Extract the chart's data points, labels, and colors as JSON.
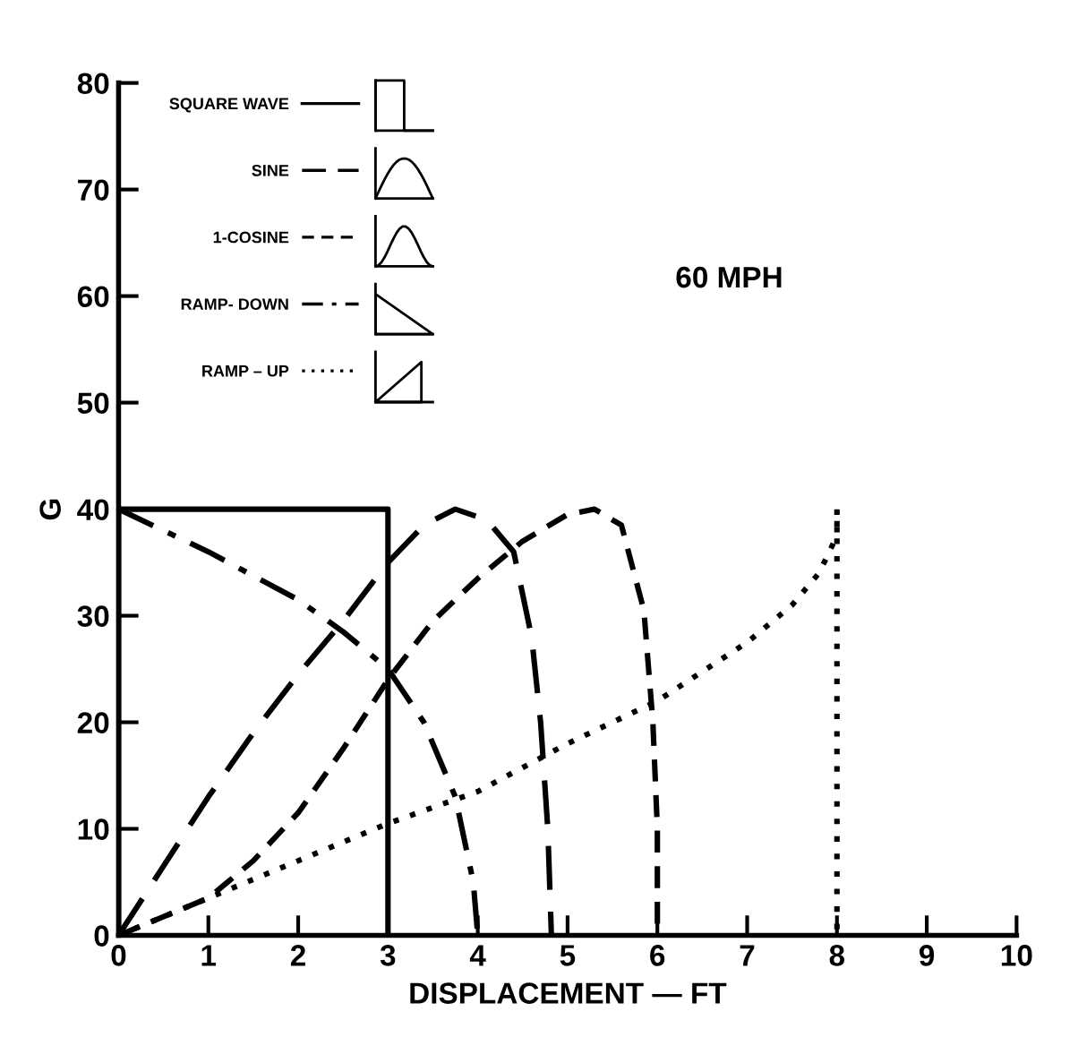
{
  "chart_data": {
    "type": "line",
    "xlabel": "DISPLACEMENT — FT",
    "ylabel": "G",
    "annotations": [
      "60 MPH"
    ],
    "xlim": [
      0,
      10
    ],
    "xticks": [
      0,
      1,
      2,
      3,
      4,
      5,
      6,
      7,
      8,
      9,
      10
    ],
    "ylim": [
      0,
      80
    ],
    "yticks": [
      0,
      10,
      20,
      30,
      40,
      50,
      60,
      70,
      80
    ],
    "grid": false,
    "legend": "top left",
    "marker": "none",
    "series": [
      {
        "name": "SQUARE WAVE",
        "color": "#000000",
        "line_style": "solid",
        "x": [
          0,
          0,
          3,
          3
        ],
        "values": [
          0,
          40,
          40,
          0
        ]
      },
      {
        "name": "SINE",
        "color": "#000000",
        "line_style": "long dashed",
        "x": [
          0,
          0.5,
          1,
          1.5,
          2,
          2.5,
          3,
          3.4,
          3.75,
          4.1,
          4.4,
          4.6,
          4.7,
          4.78,
          4.82
        ],
        "values": [
          0,
          6.5,
          13,
          19,
          24.5,
          29.5,
          35,
          38.5,
          40,
          39,
          36,
          28,
          20,
          10,
          0
        ]
      },
      {
        "name": "1-COSINE",
        "color": "#000000",
        "line_style": "dashed",
        "x": [
          0,
          1,
          1.5,
          2,
          2.5,
          3,
          3.5,
          4,
          4.5,
          5,
          5.3,
          5.6,
          5.85,
          5.95,
          6,
          6
        ],
        "values": [
          0,
          3.5,
          7,
          11.5,
          17.5,
          24,
          29.5,
          33.5,
          37,
          39.5,
          40,
          38.5,
          30.5,
          20,
          10,
          0
        ]
      },
      {
        "name": "RAMP- DOWN",
        "color": "#000000",
        "line_style": "dashdot",
        "x": [
          0,
          1,
          2,
          2.5,
          3,
          3.4,
          3.75,
          3.95,
          4
        ],
        "values": [
          40,
          36,
          31.5,
          28.5,
          25,
          20,
          13,
          5,
          0
        ]
      },
      {
        "name": "RAMP – UP",
        "color": "#000000",
        "line_style": "dotted",
        "x": [
          0,
          1,
          2,
          3,
          4,
          5,
          6,
          7,
          7.5,
          7.8,
          8,
          8,
          8
        ],
        "values": [
          0,
          3.5,
          7,
          10.5,
          13.5,
          18,
          22,
          27.5,
          31,
          34,
          37.5,
          40,
          0
        ]
      }
    ]
  }
}
